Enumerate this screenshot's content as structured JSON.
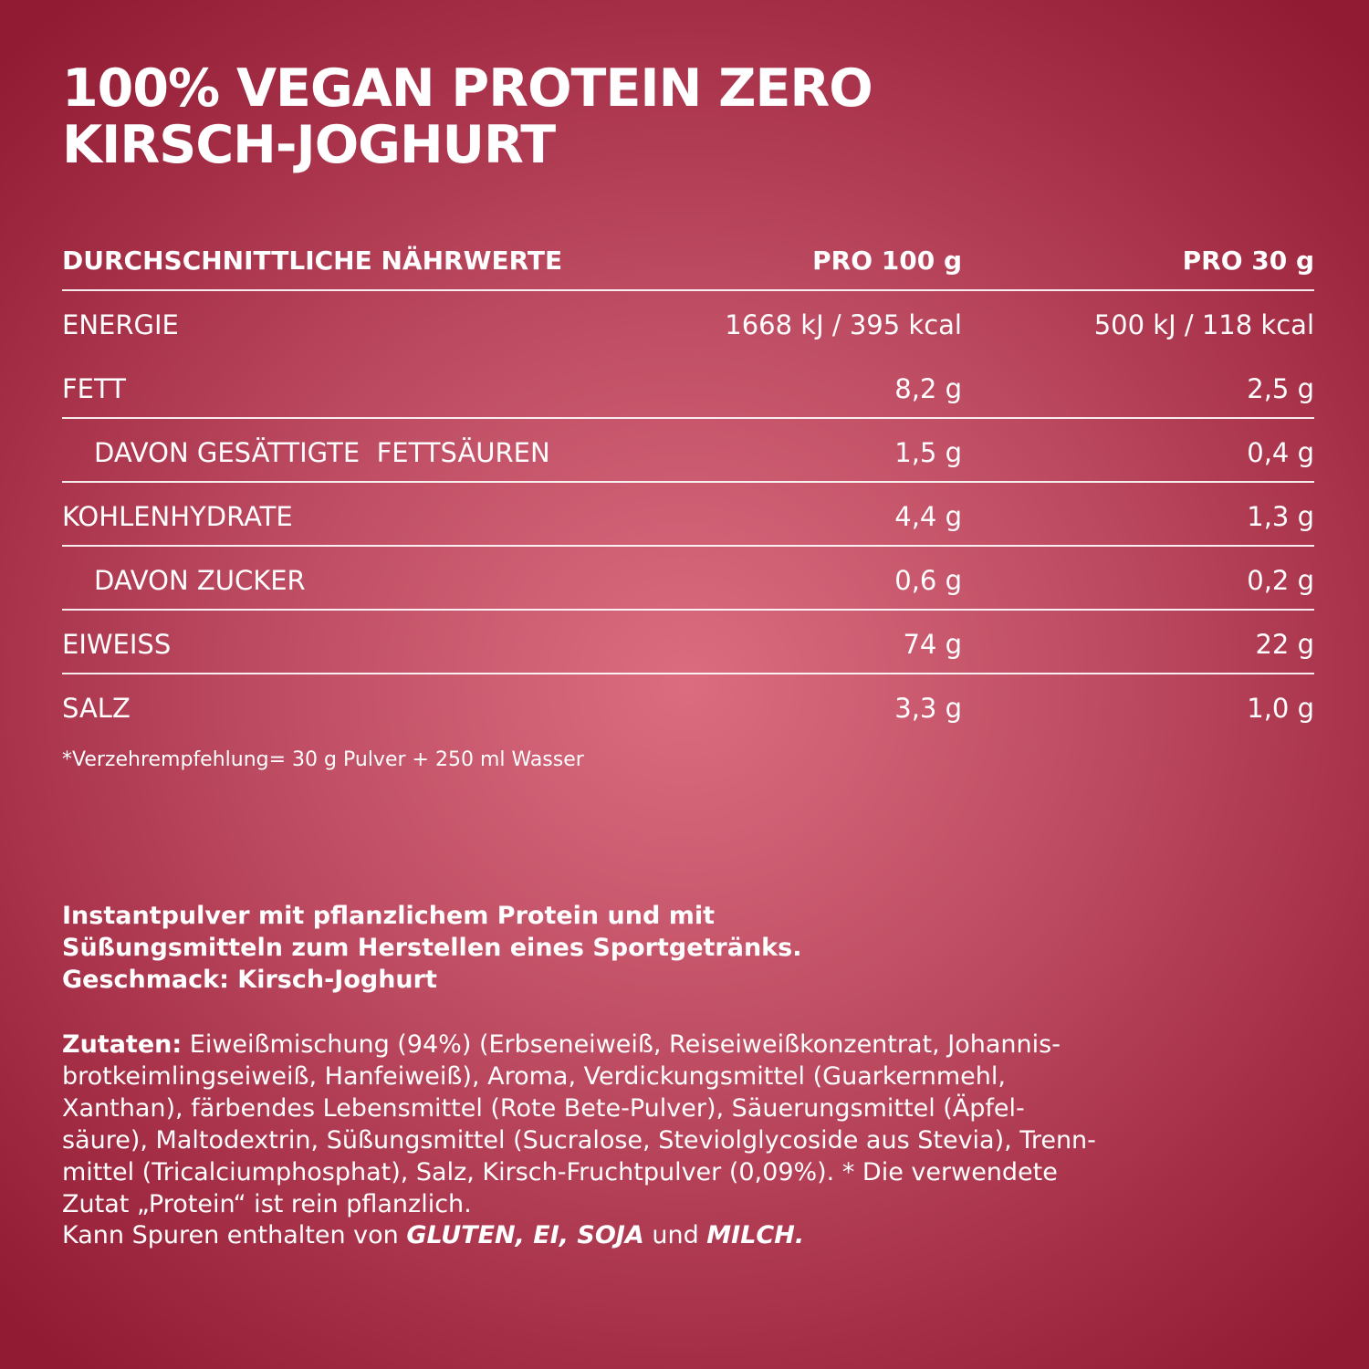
{
  "title": {
    "line1": "100% VEGAN PROTEIN ZERO",
    "line2": "KIRSCH-JOGHURT"
  },
  "nutrition": {
    "header": {
      "label": "DURCHSCHNITTLICHE NÄHRWERTE",
      "col1": "PRO 100 g",
      "col2": "PRO 30 g"
    },
    "rows": [
      {
        "label": "ENERGIE",
        "v100": "1668 kJ / 395 kcal",
        "v30": "500 kJ / 118 kcal"
      },
      {
        "label": "FETT",
        "v100": "8,2 g",
        "v30": "2,5 g"
      },
      {
        "label": "DAVON GESÄTTIGTE  FETTSÄUREN",
        "v100": "1,5 g",
        "v30": "0,4 g"
      },
      {
        "label": "KOHLENHYDRATE",
        "v100": "4,4 g",
        "v30": "1,3 g"
      },
      {
        "label": "DAVON ZUCKER",
        "v100": "0,6 g",
        "v30": "0,2 g"
      },
      {
        "label": "EIWEISS",
        "v100": "74 g",
        "v30": "22 g"
      },
      {
        "label": "SALZ",
        "v100": "3,3 g",
        "v30": "1,0 g"
      }
    ],
    "footnote": "*Verzehrempfehlung= 30 g Pulver + 250 ml Wasser"
  },
  "description": {
    "line1": "Instantpulver mit pflanzlichem Protein und mit",
    "line2": "Süßungsmitteln zum Herstellen eines Sportgetränks.",
    "line3": "Geschmack: Kirsch-Joghurt"
  },
  "ingredients": {
    "label": "Zutaten:",
    "line1": " Eiweißmischung (94%) (Erbseneiweiß, Reiseiweißkonzentrat, Johannis-",
    "line2": "brotkeimlingseiweiß, Hanfeiweiß), Aroma, Verdickungsmittel (Guarkernmehl,",
    "line3": "Xanthan), färbendes Lebensmittel (Rote Bete-Pulver), Säuerungsmittel (Äpfel-",
    "line4": "säure), Maltodextrin, Süßungsmittel (Sucralose, Steviolglycoside aus Stevia), Trenn-",
    "line5": "mittel (Tricalciumphosphat), Salz, Kirsch-Fruchtpulver (0,09%). * Die verwendete",
    "line6": "Zutat „Protein“ ist rein pflanzlich."
  },
  "allergens": {
    "prefix": "Kann Spuren enthalten von ",
    "list": "GLUTEN, EI, SOJA",
    "conj": " und ",
    "last": "MILCH."
  }
}
